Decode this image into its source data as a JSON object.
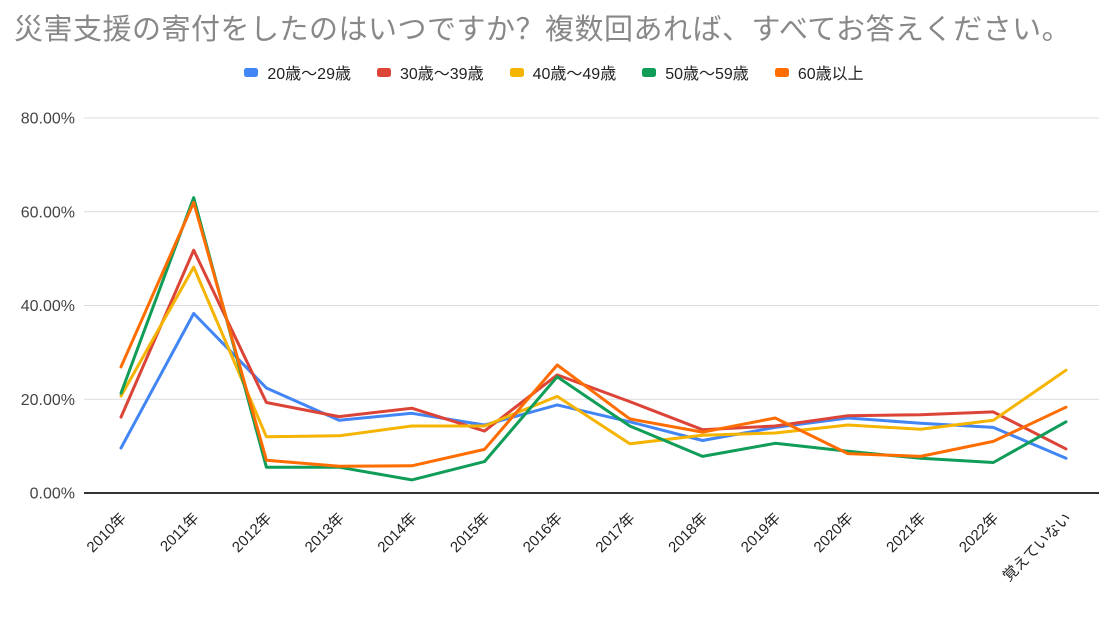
{
  "chart_data": {
    "type": "line",
    "title": "災害支援の寄付をしたのはいつですか？複数回あれば、すべてお答えください。",
    "categories": [
      "2010年",
      "2011年",
      "2012年",
      "2013年",
      "2014年",
      "2015年",
      "2016年",
      "2017年",
      "2018年",
      "2019年",
      "2020年",
      "2021年",
      "2022年",
      "覚えていない"
    ],
    "series": [
      {
        "name": "20歳〜29歳",
        "color": "#4285F4",
        "values": [
          9.6,
          38.3,
          22.4,
          15.5,
          17.0,
          14.5,
          18.8,
          15.2,
          11.2,
          14.0,
          16.0,
          14.9,
          14.0,
          7.4
        ]
      },
      {
        "name": "30歳〜39歳",
        "color": "#DB4437",
        "values": [
          16.2,
          51.8,
          19.3,
          16.3,
          18.1,
          13.2,
          25.2,
          19.5,
          13.5,
          14.3,
          16.5,
          16.7,
          17.3,
          9.4
        ]
      },
      {
        "name": "40歳〜49歳",
        "color": "#F4B400",
        "values": [
          20.7,
          48.2,
          12.0,
          12.2,
          14.3,
          14.3,
          20.6,
          10.5,
          12.3,
          12.8,
          14.5,
          13.6,
          15.5,
          26.2
        ]
      },
      {
        "name": "50歳〜59歳",
        "color": "#0F9D58",
        "values": [
          21.3,
          63.0,
          5.5,
          5.5,
          2.8,
          6.7,
          24.8,
          14.3,
          7.8,
          10.6,
          8.9,
          7.4,
          6.5,
          15.2
        ]
      },
      {
        "name": "60歳以上",
        "color": "#FF6D00",
        "values": [
          26.9,
          62.0,
          7.0,
          5.7,
          5.8,
          9.3,
          27.3,
          15.8,
          13.0,
          16.0,
          8.4,
          7.8,
          11.0,
          18.3
        ]
      }
    ],
    "y_axis": {
      "min": 0,
      "max": 80,
      "tick_step": 20,
      "tick_labels": [
        "0.00%",
        "20.00%",
        "40.00%",
        "60.00%",
        "80.00%"
      ]
    },
    "x_axis": {
      "label_rotation_deg": 45
    },
    "grid": true,
    "legend_position": "top"
  },
  "styles": {
    "title_color": "#888888",
    "legend_text_color": "#222222",
    "y_label_color": "#444444",
    "x_label_color": "#222222",
    "gridline_color": "#dadce0",
    "axis_line_color": "#333333",
    "background_color": "#ffffff"
  }
}
